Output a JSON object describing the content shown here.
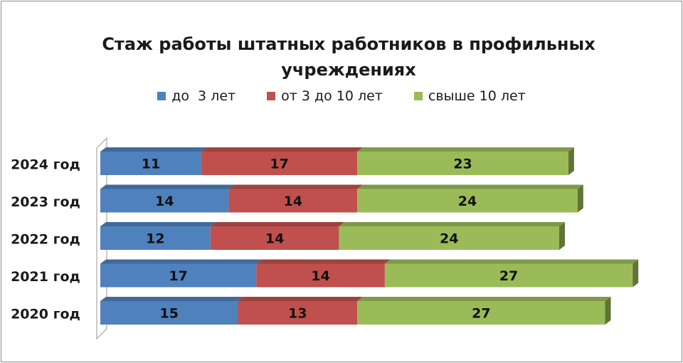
{
  "chart_data": {
    "type": "bar",
    "orientation": "horizontal",
    "stacked": true,
    "style": "3d",
    "title": "Стаж работы штатных работников в профильных учреждениях",
    "categories": [
      "2024 год",
      "2023 год",
      "2022 год",
      "2021 год",
      "2020 год"
    ],
    "series": [
      {
        "name": "до  3 лет",
        "color": "#4f81bd",
        "values": [
          11,
          14,
          12,
          17,
          15
        ]
      },
      {
        "name": "от 3 до 10 лет",
        "color": "#c0504d",
        "values": [
          17,
          14,
          14,
          14,
          13
        ]
      },
      {
        "name": "свыше 10 лет",
        "color": "#9bbb59",
        "values": [
          23,
          24,
          24,
          27,
          27
        ]
      }
    ],
    "legend_position": "top",
    "grid": false,
    "data_labels": true
  }
}
